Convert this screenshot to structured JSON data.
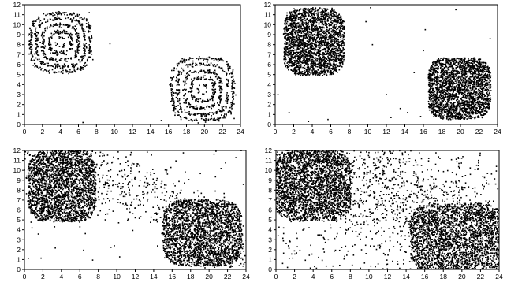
{
  "chart_data": [
    {
      "type": "scatter",
      "title": "",
      "xlabel": "",
      "ylabel": "",
      "xlim": [
        0,
        24
      ],
      "ylim": [
        0,
        12
      ],
      "xticks": [
        "0",
        "2",
        "4",
        "6",
        "8",
        "10",
        "12",
        "14",
        "16",
        "18",
        "20",
        "22",
        "24"
      ],
      "yticks": [
        "0",
        "1",
        "2",
        "3",
        "4",
        "5",
        "6",
        "7",
        "8",
        "9",
        "10",
        "11",
        "12"
      ],
      "grid": false,
      "marker_color": "#000000",
      "series": [
        {
          "label": "",
          "kind": "concentric-rings",
          "center": [
            4,
            8.2
          ],
          "rings": [
            1,
            1.65,
            2.25,
            2.75
          ],
          "extent": [
            1,
            7.3,
            5.3,
            11
          ]
        },
        {
          "label": "",
          "kind": "concentric-rings",
          "center": [
            19.8,
            3.5
          ],
          "rings": [
            1,
            1.6,
            2.2,
            2.7
          ],
          "extent": [
            16.4,
            22.8,
            0.5,
            6.6
          ]
        },
        {
          "label": "",
          "kind": "sparse-scatter",
          "points": [
            [
              7.6,
              6.5
            ],
            [
              7.2,
              11.2
            ],
            [
              23.3,
              0.6
            ],
            [
              15.2,
              0.4
            ],
            [
              9.5,
              8.1
            ],
            [
              6.5,
              0.2
            ]
          ]
        }
      ]
    },
    {
      "type": "scatter",
      "title": "",
      "xlabel": "",
      "ylabel": "",
      "xlim": [
        0,
        24
      ],
      "ylim": [
        0,
        12
      ],
      "xticks": [
        "0",
        "2",
        "4",
        "6",
        "8",
        "10",
        "12",
        "14",
        "16",
        "18",
        "20",
        "22",
        "24"
      ],
      "yticks": [
        "0",
        "1",
        "2",
        "3",
        "4",
        "5",
        "6",
        "7",
        "8",
        "9",
        "10",
        "11",
        "12"
      ],
      "grid": false,
      "marker_color": "#000000",
      "series": [
        {
          "label": "",
          "kind": "filled-cluster",
          "center": [
            4.2,
            8.3
          ],
          "extent": [
            1,
            7.8,
            5,
            12
          ]
        },
        {
          "label": "",
          "kind": "filled-cluster",
          "center": [
            19.9,
            3.6
          ],
          "extent": [
            16.5,
            23.5,
            0.4,
            6.8
          ]
        },
        {
          "label": "",
          "kind": "sparse-scatter",
          "points": [
            [
              13.5,
              1.6
            ],
            [
              12,
              3
            ],
            [
              12.5,
              0.7
            ],
            [
              10.3,
              11.7
            ],
            [
              9.8,
              10.3
            ],
            [
              10.5,
              8
            ],
            [
              0.3,
              3
            ],
            [
              3.6,
              0.3
            ],
            [
              5.7,
              0.5
            ],
            [
              1.5,
              1.2
            ],
            [
              16,
              7.4
            ],
            [
              23.2,
              8.6
            ],
            [
              15,
              5.2
            ],
            [
              16.2,
              9.5
            ],
            [
              19.5,
              11.5
            ],
            [
              15.7,
              0.8
            ],
            [
              14.3,
              1.2
            ]
          ]
        }
      ]
    },
    {
      "type": "scatter",
      "title": "",
      "xlabel": "",
      "ylabel": "",
      "xlim": [
        0,
        24
      ],
      "ylim": [
        0,
        12
      ],
      "xticks": [
        "0",
        "2",
        "4",
        "6",
        "8",
        "10",
        "12",
        "14",
        "16",
        "18",
        "20",
        "22",
        "24"
      ],
      "yticks": [
        "0",
        "1",
        "2",
        "3",
        "4",
        "5",
        "6",
        "7",
        "8",
        "9",
        "10",
        "11",
        "12"
      ],
      "grid": false,
      "marker_color": "#000000",
      "series": [
        {
          "label": "",
          "kind": "filled-cluster",
          "center": [
            4.1,
            8.4
          ],
          "extent": [
            0.4,
            8,
            4.5,
            12
          ]
        },
        {
          "label": "",
          "kind": "filled-cluster",
          "center": [
            19.3,
            3.7
          ],
          "extent": [
            14.7,
            23.6,
            0,
            7
          ]
        },
        {
          "label": "",
          "kind": "diffuse-band",
          "density": 0.3
        }
      ]
    },
    {
      "type": "scatter",
      "title": "",
      "xlabel": "",
      "ylabel": "",
      "xlim": [
        0,
        24
      ],
      "ylim": [
        0,
        12
      ],
      "xticks": [
        "0",
        "2",
        "4",
        "6",
        "8",
        "10",
        "12",
        "14",
        "16",
        "18",
        "20",
        "22",
        "24"
      ],
      "yticks": [
        "0",
        "1",
        "2",
        "3",
        "4",
        "5",
        "6",
        "7",
        "8",
        "9",
        "10",
        "11",
        "12"
      ],
      "grid": false,
      "marker_color": "#000000",
      "series": [
        {
          "label": "",
          "kind": "filled-cluster",
          "center": [
            4,
            8.5
          ],
          "extent": [
            0,
            8.5,
            4.5,
            12
          ]
        },
        {
          "label": "",
          "kind": "filled-cluster",
          "center": [
            19.5,
            3.2
          ],
          "extent": [
            13.5,
            24,
            0,
            7.2
          ]
        },
        {
          "label": "",
          "kind": "diffuse-band",
          "density": 0.75
        }
      ]
    }
  ]
}
